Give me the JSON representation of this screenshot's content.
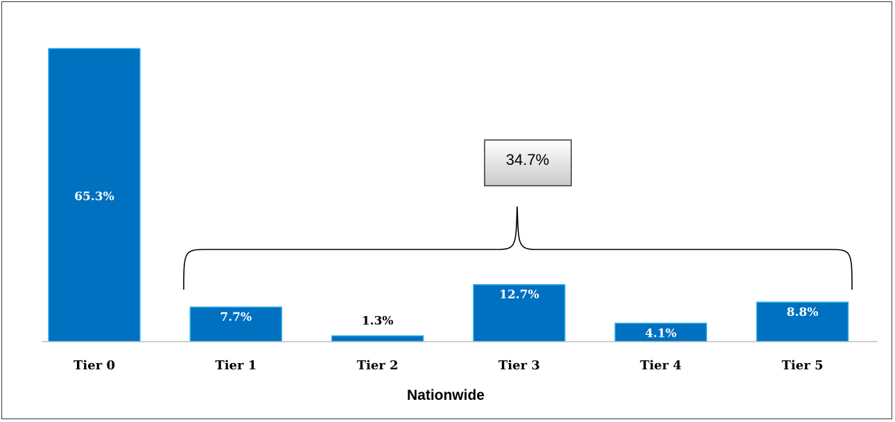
{
  "colors": {
    "bar_fill": "#0070C0",
    "bar_stroke": "#31B6F0",
    "axis_line": "#BFBFBF",
    "callout_border": "#333333"
  },
  "chart_data": {
    "type": "bar",
    "title": "",
    "xlabel": "Nationwide",
    "ylabel": "",
    "ylim": [
      0,
      65.3
    ],
    "grid": false,
    "legend": "none",
    "categories": [
      "Tier 0",
      "Tier 1",
      "Tier 2",
      "Tier 3",
      "Tier 4",
      "Tier 5"
    ],
    "values": [
      65.3,
      7.7,
      1.3,
      12.7,
      4.1,
      8.8
    ],
    "data_labels": [
      "65.3%",
      "7.7%",
      "1.3%",
      "12.7%",
      "4.1%",
      "8.8%"
    ],
    "annotations": [
      {
        "type": "brace-callout",
        "text": "34.7%",
        "spans_categories": [
          "Tier 1",
          "Tier 2",
          "Tier 3",
          "Tier 4",
          "Tier 5"
        ]
      }
    ]
  }
}
